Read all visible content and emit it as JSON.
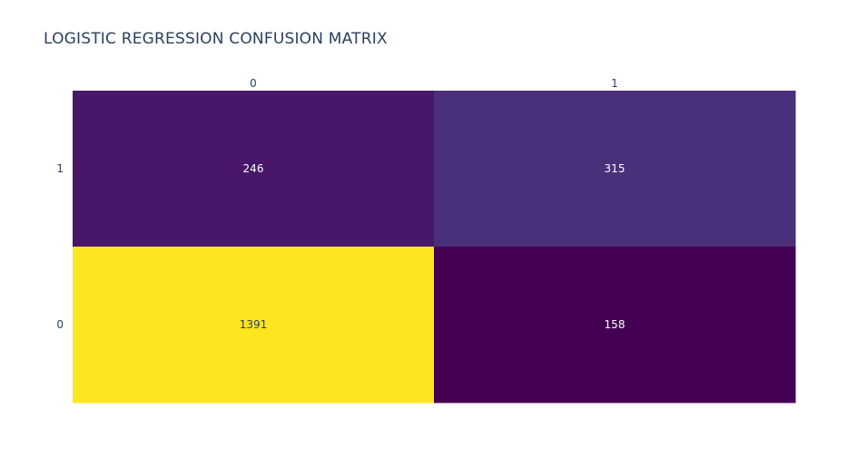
{
  "chart_data": {
    "type": "heatmap",
    "title": "LOGISTIC REGRESSION CONFUSION MATRIX",
    "x_categories": [
      "0",
      "1"
    ],
    "y_categories": [
      "1",
      "0"
    ],
    "z": [
      [
        246,
        315
      ],
      [
        1391,
        158
      ]
    ],
    "colorscale": "viridis",
    "colors": {
      "1_0": "#481769",
      "1_1": "#4a2f7a",
      "0_0": "#fde51f",
      "0_1": "#440154"
    },
    "label_colors": {
      "dark": "#2a3f5f",
      "light": "#ffffff"
    },
    "x_axis_side": "top",
    "legend": "none",
    "grid": false
  }
}
